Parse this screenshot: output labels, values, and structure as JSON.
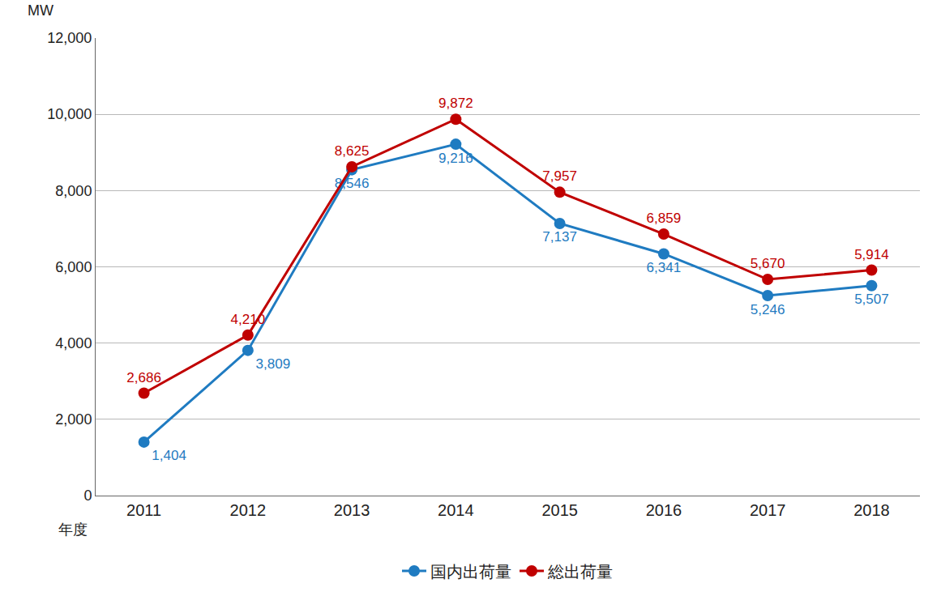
{
  "chart_data": {
    "type": "line",
    "ylabel": "MW",
    "xlabel": "年度",
    "categories": [
      "2011",
      "2012",
      "2013",
      "2014",
      "2015",
      "2016",
      "2017",
      "2018"
    ],
    "series": [
      {
        "name": "国内出荷量",
        "color": "#1f7bc1",
        "marker": "circle",
        "values": [
          1404,
          3809,
          8546,
          9216,
          7137,
          6341,
          5246,
          5507
        ],
        "value_labels": [
          "1,404",
          "3,809",
          "8,546",
          "9,216",
          "7,137",
          "6,341",
          "5,246",
          "5,507"
        ]
      },
      {
        "name": "総出荷量",
        "color": "#c00000",
        "marker": "circle",
        "values": [
          2686,
          4210,
          8625,
          9872,
          7957,
          6859,
          5670,
          5914
        ],
        "value_labels": [
          "2,686",
          "4,210",
          "8,625",
          "9,872",
          "7,957",
          "6,859",
          "5,670",
          "5,914"
        ]
      }
    ],
    "ylim": [
      0,
      12000
    ],
    "yticks": [
      0,
      {
        "value": 2000,
        "label": "2,000"
      },
      {
        "value": 4000,
        "label": "4,000"
      },
      {
        "value": 6000,
        "label": "6,000"
      },
      {
        "value": 8000,
        "label": "8,000"
      },
      {
        "value": 10000,
        "label": "10,000"
      },
      {
        "value": 12000,
        "label": "12,000"
      }
    ],
    "grid": true,
    "legend": "bottom",
    "data_labels": true
  }
}
